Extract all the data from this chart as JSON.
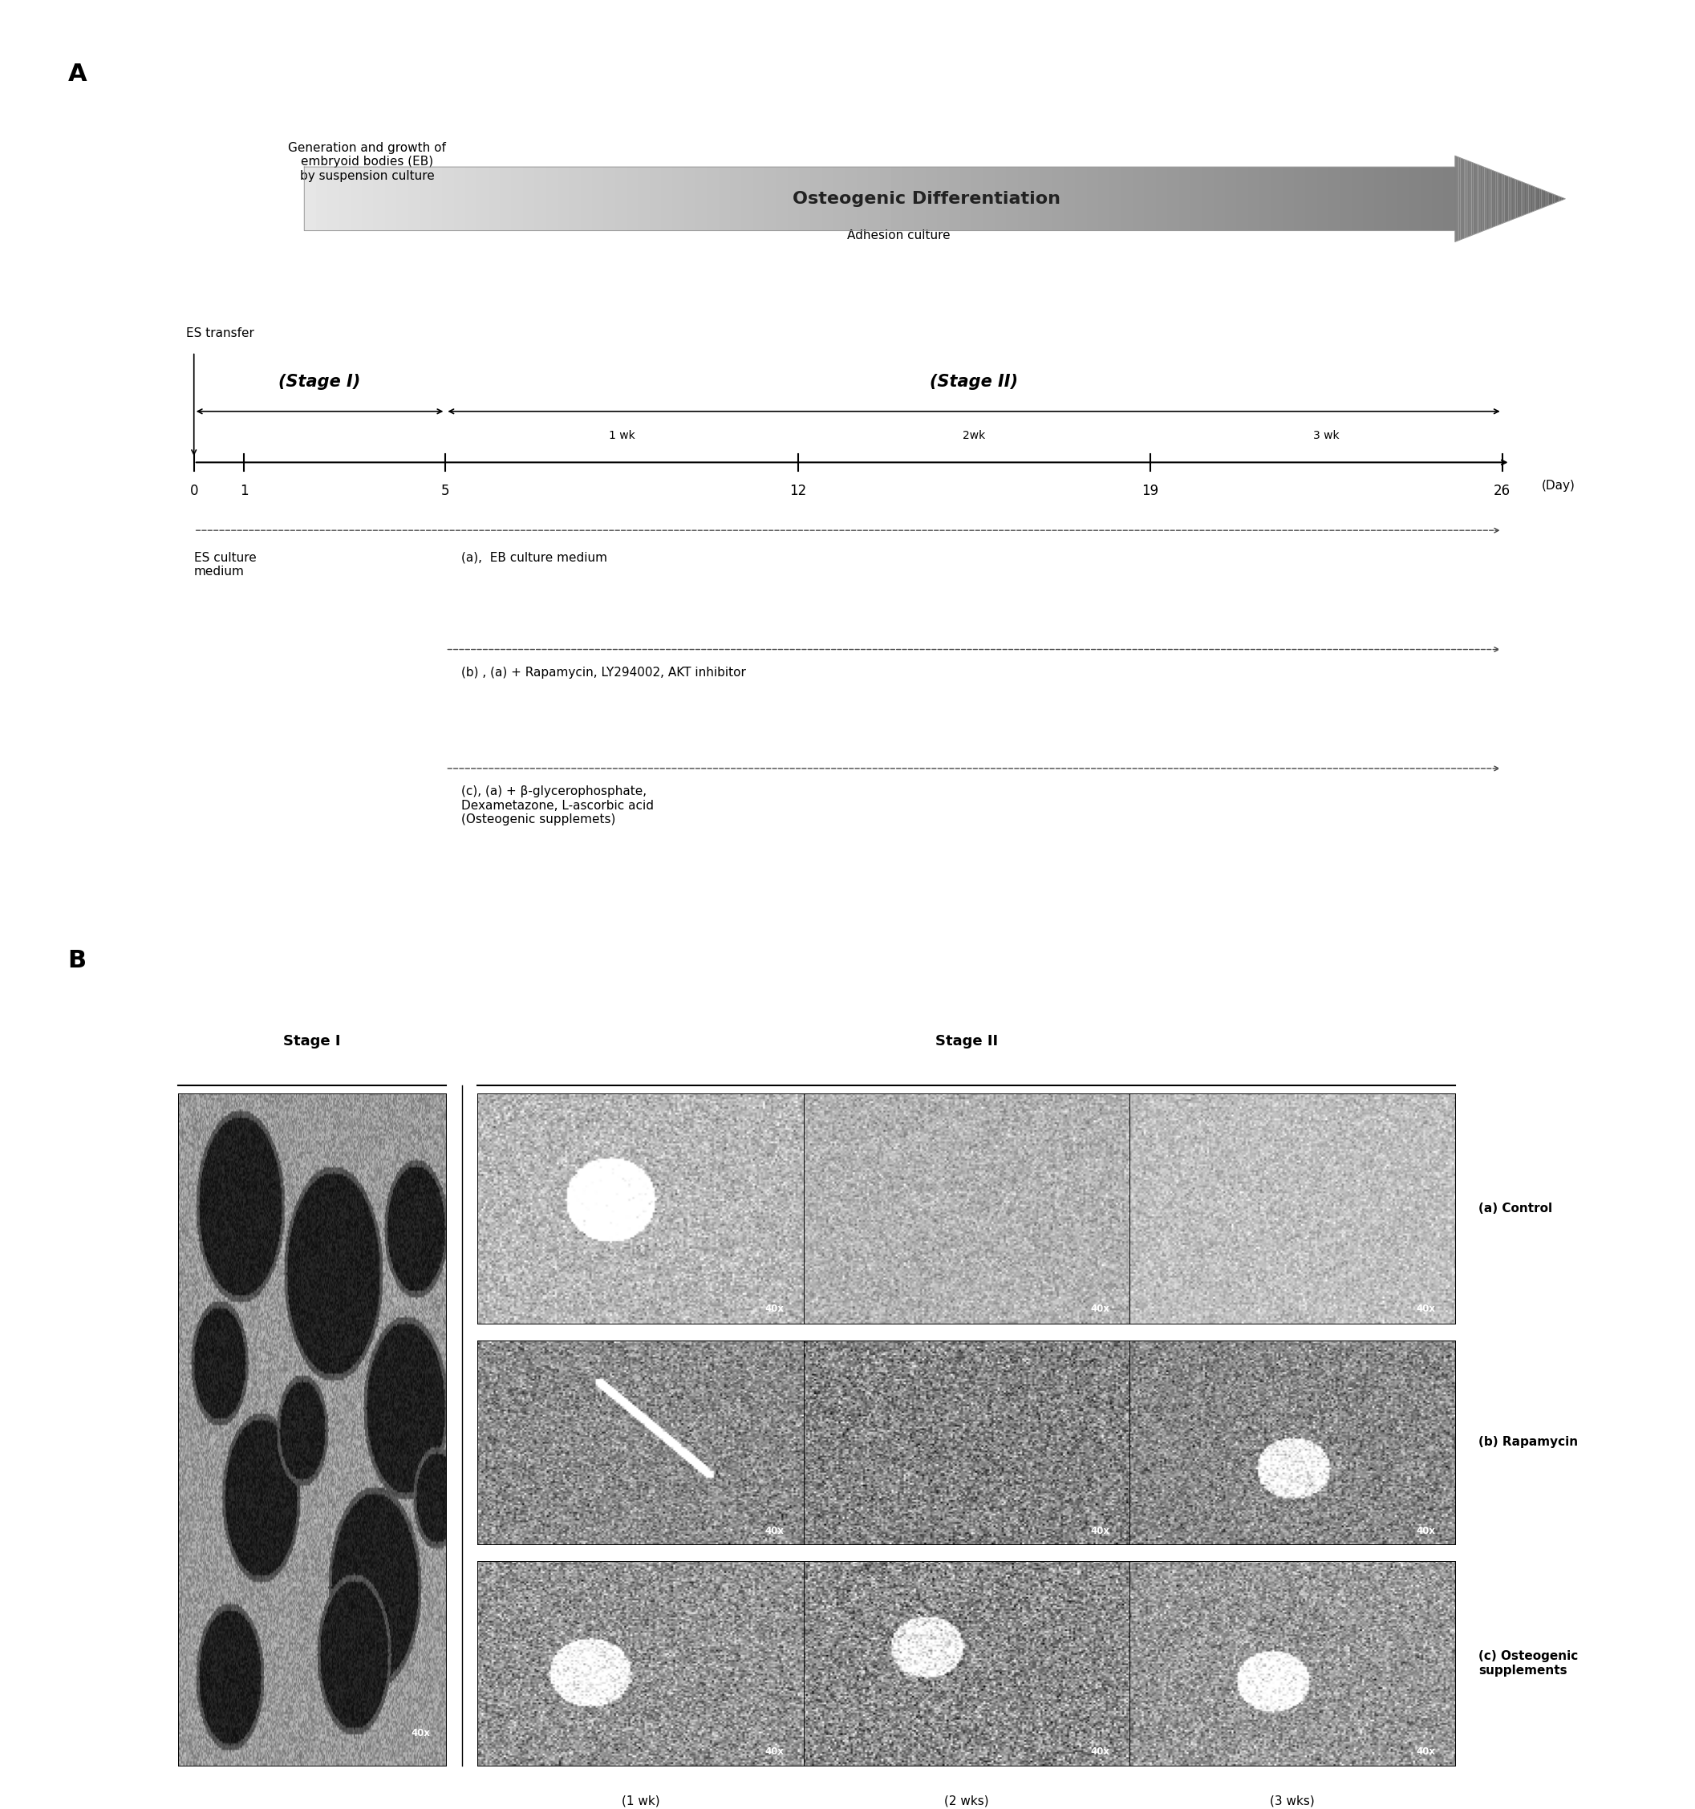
{
  "fig_width": 21.13,
  "fig_height": 22.55,
  "bg_color": "#ffffff",
  "panel_A_label": "A",
  "panel_B_label": "B",
  "arrow_text": "Osteogenic Differentiation",
  "timeline_days": [
    0,
    1,
    5,
    12,
    19,
    26
  ],
  "day_label": "(Day)",
  "stage1_label": "(Stage I)",
  "stage2_label": "(Stage II)",
  "es_transfer_label": "ES transfer",
  "stage1_desc": "Generation and growth of\nembryoid bodies (EB)\nby suspension culture",
  "adhesion_label": "Adhesion culture",
  "medium_a_label": "ES culture\nmedium",
  "medium_b_label": "(a),  EB culture medium",
  "medium_c_label": "(b) , (a) + Rapamycin, LY294002, AKT inhibitor",
  "medium_d_label": "(c), (a) + β-glycerophosphate,\nDexametazone, L-ascorbic acid\n(Osteogenic supplemets)",
  "week_labels": [
    "1 wk",
    "2wk",
    "3 wk"
  ],
  "week_mid_days": [
    8.5,
    15.5,
    22.5
  ],
  "stage1_col_label": "Stage I",
  "stage2_col_label": "Stage II",
  "row_labels": [
    "(a) Control",
    "(b) Rapamycin",
    "(c) Osteogenic\nsupplements"
  ],
  "col_labels": [
    "(1 wk)",
    "(2 wks)",
    "(3 wks)"
  ],
  "text_color": "#000000",
  "line_color": "#000000",
  "dashed_color": "#444444"
}
